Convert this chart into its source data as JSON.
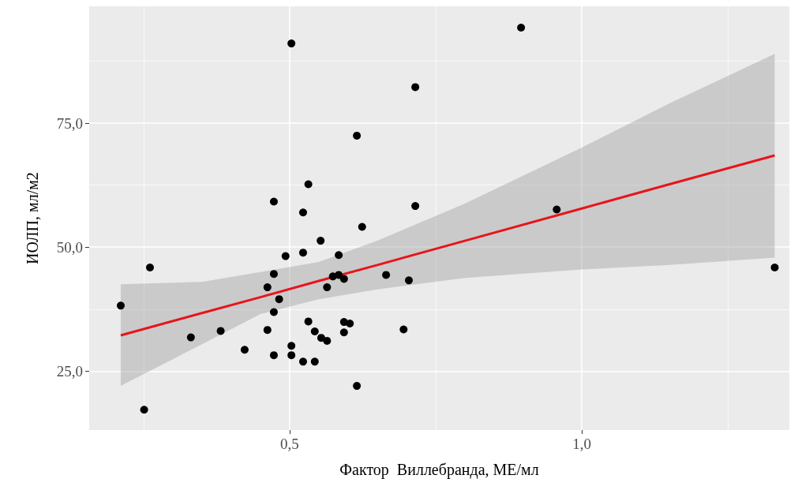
{
  "chart_data": {
    "type": "scatter",
    "xlabel": "Фактор  Виллебранда, МЕ/мл",
    "ylabel": "ИОЛП, мл/м2",
    "xlim": [
      0.157,
      1.355
    ],
    "ylim": [
      13.1,
      98.6
    ],
    "xticks": [
      {
        "value": 0.5,
        "label": "0,5"
      },
      {
        "value": 1.0,
        "label": "1,0"
      }
    ],
    "yticks": [
      {
        "value": 25,
        "label": "25,0"
      },
      {
        "value": 50,
        "label": "50,0"
      },
      {
        "value": 75,
        "label": "75,0"
      }
    ],
    "grid": true,
    "series": [
      {
        "marker": "circle",
        "color": "#000000",
        "x": [
          0.211,
          0.251,
          0.261,
          0.331,
          0.382,
          0.423,
          0.462,
          0.462,
          0.473,
          0.473,
          0.473,
          0.473,
          0.482,
          0.493,
          0.503,
          0.503,
          0.503,
          0.523,
          0.523,
          0.523,
          0.532,
          0.532,
          0.543,
          0.543,
          0.553,
          0.554,
          0.564,
          0.564,
          0.574,
          0.584,
          0.584,
          0.593,
          0.593,
          0.593,
          0.603,
          0.615,
          0.615,
          0.624,
          0.665,
          0.695,
          0.704,
          0.715,
          0.715,
          0.896,
          0.957,
          1.33
        ],
        "values": [
          38.2,
          17.2,
          45.9,
          31.8,
          33.1,
          29.3,
          33.3,
          41.9,
          44.6,
          59.2,
          28.2,
          36.9,
          39.5,
          48.2,
          91.1,
          30.1,
          28.2,
          48.9,
          57.0,
          26.9,
          62.7,
          35.0,
          26.9,
          33.0,
          51.3,
          31.7,
          31.1,
          41.9,
          44.1,
          48.4,
          44.4,
          43.6,
          34.9,
          32.8,
          34.6,
          72.5,
          22.0,
          54.1,
          44.4,
          33.4,
          43.3,
          82.3,
          58.3,
          94.3,
          57.6,
          45.9
        ]
      },
      {
        "type": "line",
        "marker": "none",
        "color": "#e8141c",
        "x": [
          0.211,
          0.35,
          0.45,
          0.55,
          0.65,
          0.8,
          1.0,
          1.15,
          1.33
        ],
        "values": [
          32.2,
          36.7,
          39.9,
          43.2,
          46.4,
          51.3,
          57.8,
          62.7,
          68.5
        ],
        "lower": [
          22.0,
          30.4,
          36.5,
          39.5,
          41.5,
          43.8,
          45.5,
          46.4,
          47.9
        ],
        "upper": [
          42.5,
          43.0,
          45.0,
          47.0,
          51.3,
          58.8,
          70.1,
          79.0,
          89.0
        ]
      }
    ]
  }
}
